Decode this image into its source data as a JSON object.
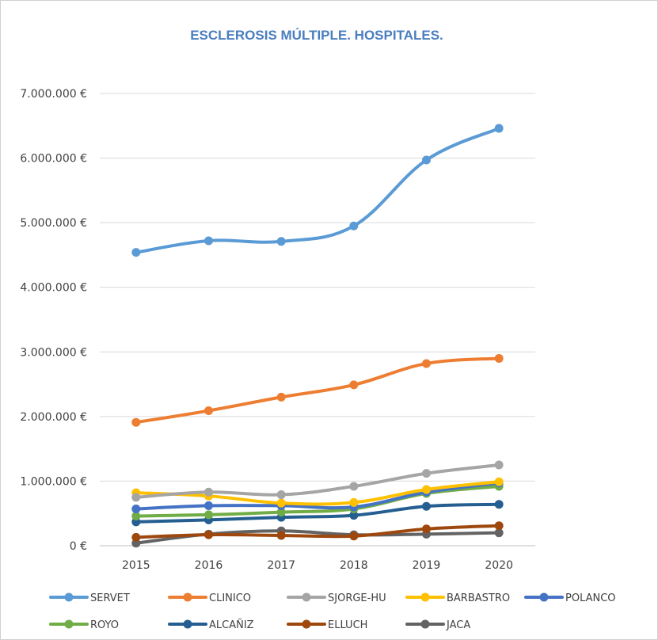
{
  "chart_data": {
    "type": "line",
    "title": "ESCLEROSIS MÚLTIPLE. HOSPITALES.",
    "xlabel": "",
    "ylabel": "",
    "x": [
      "2015",
      "2016",
      "2017",
      "2018",
      "2019",
      "2020"
    ],
    "ylim": [
      0,
      7000000
    ],
    "yticks": [
      0,
      1000000,
      2000000,
      3000000,
      4000000,
      5000000,
      6000000,
      7000000
    ],
    "ytick_labels": [
      "0 €",
      "1.000.000 €",
      "2.000.000 €",
      "3.000.000 €",
      "4.000.000 €",
      "5.000.000 €",
      "6.000.000 €",
      "7.000.000 €"
    ],
    "grid": "horizontal",
    "legend_position": "bottom",
    "series": [
      {
        "name": "SERVET",
        "color": "#5b9bd5",
        "values": [
          4540000,
          4720000,
          4710000,
          4950000,
          5970000,
          6460000
        ]
      },
      {
        "name": "CLINICO",
        "color": "#ed7d31",
        "values": [
          1910000,
          2090000,
          2300000,
          2490000,
          2820000,
          2900000
        ]
      },
      {
        "name": "SJORGE-HU",
        "color": "#a5a5a5",
        "values": [
          750000,
          830000,
          790000,
          920000,
          1120000,
          1250000
        ]
      },
      {
        "name": "BARBASTRO",
        "color": "#ffc000",
        "values": [
          820000,
          770000,
          660000,
          670000,
          870000,
          990000
        ]
      },
      {
        "name": "POLANCO",
        "color": "#4472c4",
        "values": [
          570000,
          620000,
          620000,
          600000,
          830000,
          970000
        ]
      },
      {
        "name": "ROYO",
        "color": "#70ad47",
        "values": [
          460000,
          480000,
          520000,
          570000,
          810000,
          920000
        ]
      },
      {
        "name": "ALCAÑIZ",
        "color": "#255e91",
        "values": [
          370000,
          400000,
          440000,
          470000,
          610000,
          640000
        ]
      },
      {
        "name": "ELLUCH",
        "color": "#9e480e",
        "values": [
          130000,
          170000,
          160000,
          150000,
          260000,
          310000
        ]
      },
      {
        "name": "JACA",
        "color": "#636363",
        "values": [
          40000,
          180000,
          230000,
          170000,
          180000,
          200000
        ]
      }
    ]
  }
}
